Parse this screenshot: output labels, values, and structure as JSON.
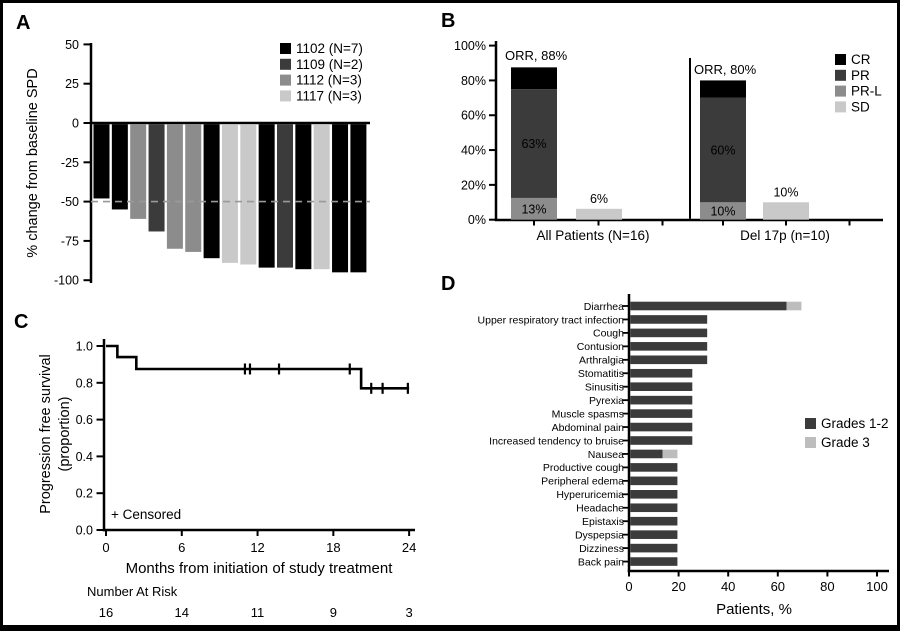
{
  "figure": {
    "panel_labels": {
      "a": "A",
      "b": "B",
      "c": "C",
      "d": "D"
    }
  },
  "chart_data": [
    {
      "panel": "A",
      "type": "bar",
      "subtype": "waterfall",
      "ylabel": "% change from baseline SPD",
      "yticks": [
        50,
        25,
        0,
        -25,
        -50,
        -75,
        -100
      ],
      "ylim": [
        -100,
        50
      ],
      "reference_line_y": -50,
      "legend_position": "top-right",
      "legend": [
        {
          "id": "1102",
          "label": "1102 (N=7)",
          "color": "#000000"
        },
        {
          "id": "1109",
          "label": "1109 (N=2)",
          "color": "#3b3b3b"
        },
        {
          "id": "1112",
          "label": "1112 (N=3)",
          "color": "#8c8c8c"
        },
        {
          "id": "1117",
          "label": "1117 (N=3)",
          "color": "#c9c9c9"
        }
      ],
      "bars": [
        {
          "dose": "1102",
          "value": -48
        },
        {
          "dose": "1102",
          "value": -55
        },
        {
          "dose": "1112",
          "value": -61
        },
        {
          "dose": "1109",
          "value": -69
        },
        {
          "dose": "1112",
          "value": -80
        },
        {
          "dose": "1112",
          "value": -82
        },
        {
          "dose": "1102",
          "value": -86
        },
        {
          "dose": "1117",
          "value": -89
        },
        {
          "dose": "1117",
          "value": -90
        },
        {
          "dose": "1102",
          "value": -92
        },
        {
          "dose": "1109",
          "value": -92
        },
        {
          "dose": "1102",
          "value": -93
        },
        {
          "dose": "1117",
          "value": -93
        },
        {
          "dose": "1102",
          "value": -95
        },
        {
          "dose": "1102",
          "value": -95
        }
      ]
    },
    {
      "panel": "B",
      "type": "bar",
      "subtype": "stacked-vertical",
      "ylim": [
        0,
        100
      ],
      "yticks": [
        {
          "v": 0,
          "label": "0%"
        },
        {
          "v": 20,
          "label": "20%"
        },
        {
          "v": 40,
          "label": "40%"
        },
        {
          "v": 60,
          "label": "60%"
        },
        {
          "v": 80,
          "label": "80%"
        },
        {
          "v": 100,
          "label": "100%"
        }
      ],
      "legend": [
        {
          "id": "CR",
          "label": "CR",
          "color": "#000000"
        },
        {
          "id": "PR",
          "label": "PR",
          "color": "#3b3b3b"
        },
        {
          "id": "PR-L",
          "label": "PR-L",
          "color": "#8c8c8c"
        },
        {
          "id": "SD",
          "label": "SD",
          "color": "#c9c9c9"
        }
      ],
      "groups": [
        {
          "label": "All Patients (N=16)",
          "orr_label": "ORR, 88%",
          "stack": [
            {
              "response": "PR-L",
              "pct": 12.5,
              "label": "13%",
              "label_color": "#111111"
            },
            {
              "response": "PR",
              "pct": 62.5,
              "label": "63%",
              "label_color": "#ffffff"
            },
            {
              "response": "CR",
              "pct": 12.5,
              "label": "13%",
              "label_color": "#ffffff"
            }
          ],
          "sd_bar": {
            "response": "SD",
            "pct": 6.25,
            "label": "6%"
          }
        },
        {
          "label": "Del 17p (n=10)",
          "orr_label": "ORR, 80%",
          "stack": [
            {
              "response": "PR-L",
              "pct": 10,
              "label": "10%",
              "label_color": "#111111"
            },
            {
              "response": "PR",
              "pct": 60,
              "label": "60%",
              "label_color": "#ffffff"
            },
            {
              "response": "CR",
              "pct": 10,
              "label": "10%",
              "label_color": "#ffffff"
            }
          ],
          "sd_bar": {
            "response": "SD",
            "pct": 10,
            "label": "10%"
          }
        }
      ]
    },
    {
      "panel": "C",
      "type": "line",
      "subtype": "kaplan-meier-step",
      "ylabel_lines": [
        "Progression free survival",
        "(proportion)"
      ],
      "xlabel": "Months from initiation of study treatment",
      "ytick_labels": [
        "1.0",
        "0.8",
        "0.6",
        "0.4",
        "0.2",
        "0.0"
      ],
      "ytick_values": [
        1.0,
        0.8,
        0.6,
        0.4,
        0.2,
        0.0
      ],
      "xticks": [
        0,
        6,
        12,
        18,
        24
      ],
      "xlim": [
        0,
        24
      ],
      "ylim": [
        0,
        1
      ],
      "censored_note": "+ Censored",
      "steps": [
        [
          0,
          1.0
        ],
        [
          0.9,
          1.0
        ],
        [
          0.9,
          0.94
        ],
        [
          2.4,
          0.94
        ],
        [
          2.4,
          0.875
        ],
        [
          20.2,
          0.875
        ],
        [
          20.2,
          0.77
        ],
        [
          24,
          0.77
        ]
      ],
      "censor_marks": [
        [
          11.0,
          0.875
        ],
        [
          11.4,
          0.875
        ],
        [
          13.7,
          0.875
        ],
        [
          19.3,
          0.875
        ],
        [
          21.0,
          0.77
        ],
        [
          21.9,
          0.77
        ],
        [
          23.9,
          0.77
        ]
      ],
      "number_at_risk": {
        "title": "Number At Risk",
        "values": [
          "16",
          "14",
          "11",
          "9",
          "3"
        ]
      }
    },
    {
      "panel": "D",
      "type": "bar",
      "subtype": "stacked-horizontal",
      "xlabel": "Patients, %",
      "xticks": [
        0,
        20,
        40,
        60,
        80,
        100
      ],
      "xlim": [
        0,
        100
      ],
      "legend": [
        {
          "id": "g12",
          "label": "Grades 1-2",
          "color": "#3b3b3b"
        },
        {
          "id": "g3",
          "label": "Grade 3",
          "color": "#bdbdbd"
        }
      ],
      "categories": [
        "Diarrhea",
        "Upper respiratory tract infection",
        "Cough",
        "Contusion",
        "Arthralgia",
        "Stomatitis",
        "Sinusitis",
        "Pyrexia",
        "Muscle spasms",
        "Abdominal pain",
        "Increased tendency to bruise",
        "Nausea",
        "Productive cough",
        "Peripheral edema",
        "Hyperuricemia",
        "Headache",
        "Epistaxis",
        "Dyspepsia",
        "Dizziness",
        "Back pain"
      ],
      "series": [
        {
          "name": "Grades 1-2",
          "values": [
            63,
            31,
            31,
            31,
            31,
            25,
            25,
            25,
            25,
            25,
            25,
            13,
            19,
            19,
            19,
            19,
            19,
            19,
            19,
            19
          ]
        },
        {
          "name": "Grade 3",
          "values": [
            6,
            0,
            0,
            0,
            0,
            0,
            0,
            0,
            0,
            0,
            0,
            6,
            0,
            0,
            0,
            0,
            0,
            0,
            0,
            0
          ]
        }
      ]
    }
  ]
}
